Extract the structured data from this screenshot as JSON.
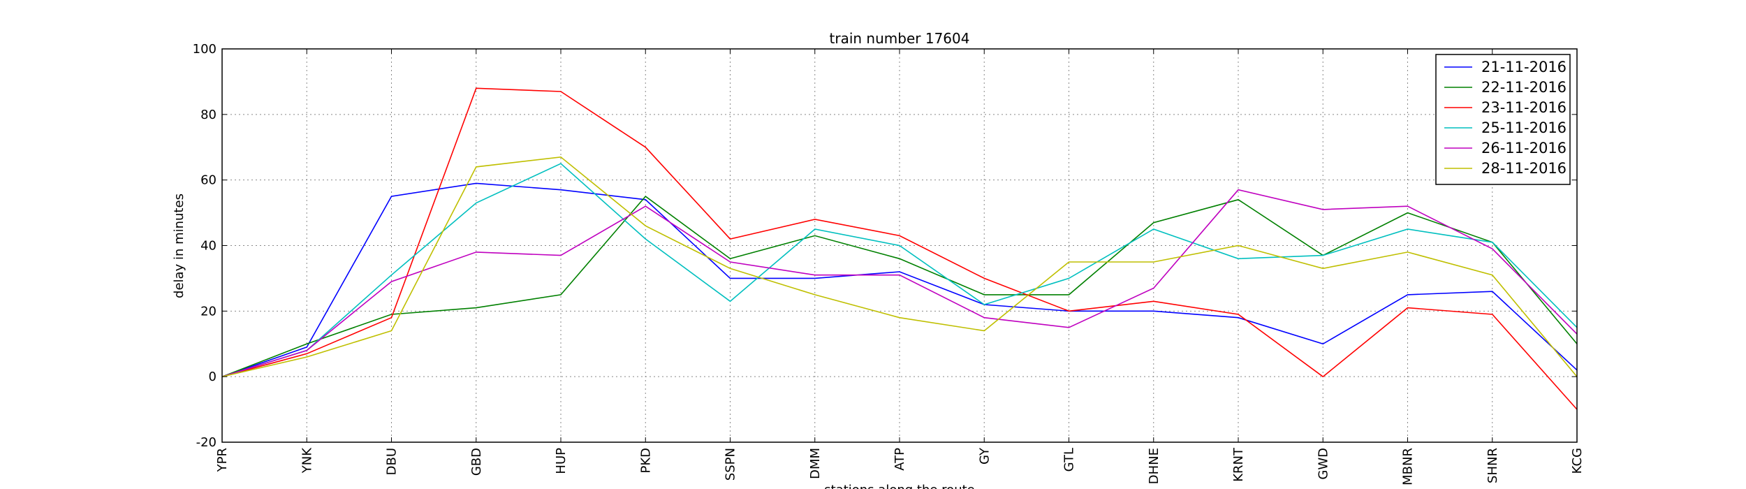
{
  "chart_data": {
    "type": "line",
    "title": "train number 17604",
    "xlabel": "stations along the route",
    "ylabel": "delay in minutes",
    "ylim": [
      -20,
      100
    ],
    "yticks": [
      -20,
      0,
      20,
      40,
      60,
      80,
      100
    ],
    "grid": true,
    "legend_position": "top-right",
    "categories": [
      "YPR",
      "YNK",
      "DBU",
      "GBD",
      "HUP",
      "PKD",
      "SSPN",
      "DMM",
      "ATP",
      "GY",
      "GTL",
      "DHNE",
      "KRNT",
      "GWD",
      "MBNR",
      "SHNR",
      "KCG"
    ],
    "series": [
      {
        "name": "21-11-2016",
        "color": "#0000ff",
        "values": [
          0,
          9,
          55,
          59,
          57,
          54,
          30,
          30,
          32,
          22,
          20,
          20,
          18,
          10,
          25,
          26,
          2
        ]
      },
      {
        "name": "22-11-2016",
        "color": "#008000",
        "values": [
          0,
          10,
          19,
          21,
          25,
          55,
          36,
          43,
          36,
          25,
          25,
          47,
          54,
          37,
          50,
          41,
          10
        ]
      },
      {
        "name": "23-11-2016",
        "color": "#ff0000",
        "values": [
          0,
          7,
          18,
          88,
          87,
          70,
          42,
          48,
          43,
          30,
          20,
          23,
          19,
          0,
          21,
          19,
          -10
        ]
      },
      {
        "name": "25-11-2016",
        "color": "#00bfbf",
        "values": [
          0,
          8,
          31,
          53,
          65,
          42,
          23,
          45,
          40,
          22,
          30,
          45,
          36,
          37,
          45,
          41,
          15
        ]
      },
      {
        "name": "26-11-2016",
        "color": "#bf00bf",
        "values": [
          0,
          8,
          29,
          38,
          37,
          52,
          35,
          31,
          31,
          18,
          15,
          27,
          57,
          51,
          52,
          39,
          13
        ]
      },
      {
        "name": "28-11-2016",
        "color": "#bfbf00",
        "values": [
          0,
          6,
          14,
          64,
          67,
          46,
          33,
          25,
          18,
          14,
          35,
          35,
          40,
          33,
          38,
          31,
          0
        ]
      }
    ]
  }
}
